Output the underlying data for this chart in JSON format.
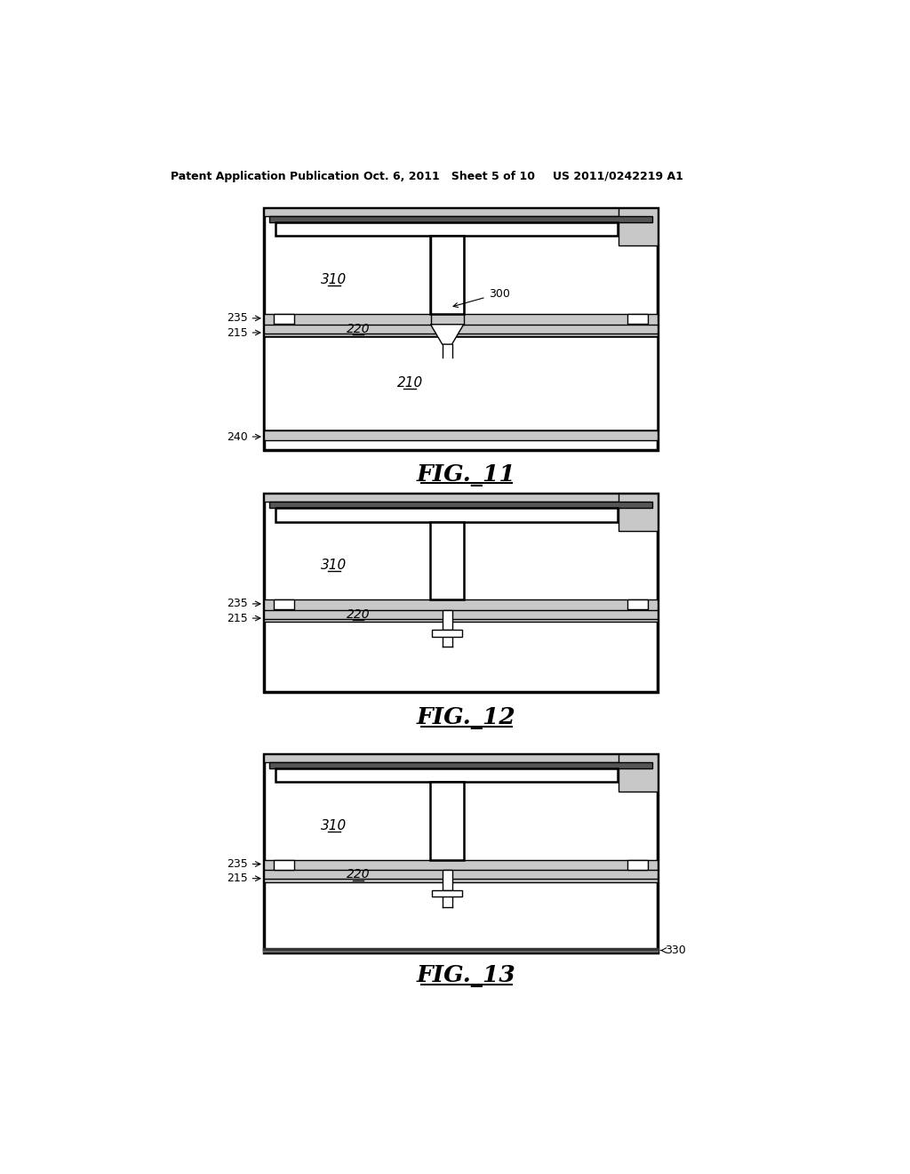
{
  "bg_color": "#ffffff",
  "header_left": "Patent Application Publication",
  "header_mid": "Oct. 6, 2011   Sheet 5 of 10",
  "header_right": "US 2011/0242219 A1",
  "fig11_caption": "FIG._11",
  "fig12_caption": "FIG._12",
  "fig13_caption": "FIG._13",
  "gray_fill": "#c8c8c8",
  "dark_fill": "#555555",
  "white": "#ffffff",
  "black": "#000000"
}
